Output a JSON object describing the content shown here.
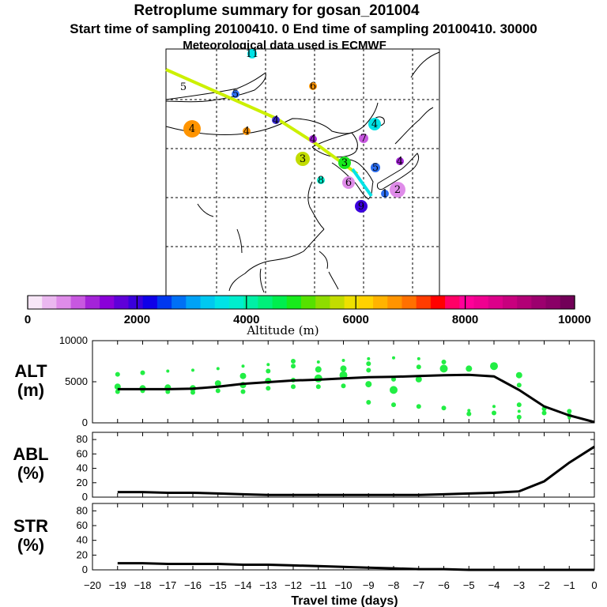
{
  "header": {
    "title": "Retroplume summary for gosan_201004",
    "line2": "Start time of sampling 20100410.    0     End time of sampling 20100410. 30000",
    "line3": "Meteorological data used is ECMWF"
  },
  "colorbar": {
    "label": "Altitude (m)",
    "ticks": [
      "0",
      "2000",
      "4000",
      "6000",
      "8000",
      "10000"
    ],
    "colors": [
      "#f7e6f7",
      "#ebb8f0",
      "#df8ce9",
      "#c858e0",
      "#a423d8",
      "#8a00d8",
      "#5f00d8",
      "#3a00dc",
      "#0f00e8",
      "#0038ef",
      "#0070f5",
      "#00a2f6",
      "#00c8f0",
      "#00e3e6",
      "#00eecd",
      "#00f0a5",
      "#00f07a",
      "#00ee4e",
      "#18ea1c",
      "#56e100",
      "#8fdc00",
      "#c2dc00",
      "#eee000",
      "#ffd200",
      "#ffb300",
      "#ff9400",
      "#ff7000",
      "#ff3c00",
      "#ff0000",
      "#ff0066",
      "#ff0099",
      "#f00090",
      "#dc008a",
      "#c8007e",
      "#b20076",
      "#9c006e",
      "#8a0066",
      "#720058"
    ]
  },
  "map": {
    "markers": [
      {
        "label": "11",
        "color": "#00e3e6"
      },
      {
        "label": "5",
        "color": "#ff9400"
      },
      {
        "label": "5",
        "color": "#2c6ef0"
      },
      {
        "label": "6",
        "color": "#ff9400"
      },
      {
        "label": "4",
        "color": "#ff9400"
      },
      {
        "label": "4",
        "color": "#ff9400"
      },
      {
        "label": "4",
        "color": "#3a2ad8"
      },
      {
        "label": "4",
        "color": "#a423d8"
      },
      {
        "label": "4",
        "color": "#00e3e6"
      },
      {
        "label": "7",
        "color": "#c858e0"
      },
      {
        "label": "3",
        "color": "#c2dc00"
      },
      {
        "label": "3",
        "color": "#18ea1c"
      },
      {
        "label": "4",
        "color": "#a423d8"
      },
      {
        "label": "5",
        "color": "#2c6ef0"
      },
      {
        "label": "8",
        "color": "#00eecd"
      },
      {
        "label": "6",
        "color": "#df8ce9"
      },
      {
        "label": "2",
        "color": "#df8ce9"
      },
      {
        "label": "1",
        "color": "#2c6ef0"
      },
      {
        "label": "9",
        "color": "#3a00dc"
      }
    ]
  },
  "chart_data": [
    {
      "type": "scatter",
      "name": "ALT",
      "ylabel_line1": "ALT",
      "ylabel_line2": "(m)",
      "xlim": [
        -20,
        0
      ],
      "ylim": [
        0,
        10000
      ],
      "yticks": [
        "10000",
        "5000",
        "0"
      ],
      "ytick_values": [
        10000,
        5000,
        0
      ],
      "mean_line": {
        "x": [
          -19,
          -18,
          -17,
          -16,
          -15,
          -14,
          -13,
          -12,
          -11,
          -10,
          -9,
          -8,
          -7,
          -6,
          -5,
          -4,
          -3,
          -2,
          -1,
          0
        ],
        "y": [
          4100,
          4100,
          4100,
          4150,
          4400,
          4750,
          4950,
          5150,
          5250,
          5400,
          5550,
          5600,
          5700,
          5800,
          5850,
          5650,
          4000,
          2000,
          900,
          100
        ]
      },
      "points": {
        "x": [
          -19,
          -19,
          -19,
          -18,
          -18,
          -18,
          -17,
          -17,
          -17,
          -16,
          -16,
          -16,
          -15,
          -15,
          -15,
          -14,
          -14,
          -14,
          -14,
          -13,
          -13,
          -13,
          -13,
          -12,
          -12,
          -12,
          -12,
          -11,
          -11,
          -11,
          -11,
          -10,
          -10,
          -10,
          -10,
          -9,
          -9,
          -9,
          -9,
          -9,
          -8,
          -8,
          -8,
          -8,
          -7,
          -7,
          -7,
          -7,
          -6,
          -6,
          -6,
          -5,
          -5,
          -5,
          -4,
          -4,
          -4,
          -3,
          -3,
          -3,
          -3,
          -3,
          -2,
          -2,
          -1,
          -1,
          -1
        ],
        "y": [
          5900,
          4400,
          3800,
          6100,
          4200,
          3900,
          6300,
          4300,
          3800,
          6400,
          4200,
          3700,
          6600,
          4800,
          3900,
          6900,
          5700,
          4600,
          3800,
          7100,
          6300,
          5100,
          4200,
          7500,
          6900,
          5200,
          4400,
          7400,
          6500,
          5400,
          4400,
          7600,
          6600,
          5800,
          4500,
          7800,
          6400,
          4700,
          2500,
          7200,
          7900,
          5300,
          4000,
          2200,
          7800,
          6800,
          5300,
          2000,
          7400,
          6600,
          1800,
          6600,
          1500,
          1100,
          6900,
          2000,
          1200,
          5800,
          4600,
          2200,
          1400,
          700,
          1700,
          1200,
          1400,
          900,
          600
        ],
        "size": [
          3,
          4,
          3,
          3,
          4,
          3,
          2,
          4,
          3,
          2,
          4,
          3,
          2,
          4,
          3,
          2,
          4,
          4,
          3,
          2,
          3,
          4,
          3,
          3,
          3,
          3,
          3,
          2,
          4,
          5,
          3,
          2,
          4,
          5,
          3,
          2,
          3,
          4,
          3,
          3,
          2,
          3,
          5,
          3,
          2,
          3,
          4,
          3,
          3,
          5,
          3,
          4,
          2,
          3,
          5,
          2,
          3,
          4,
          3,
          3,
          2,
          3,
          3,
          3,
          3,
          3,
          2
        ]
      }
    },
    {
      "type": "line",
      "name": "ABL",
      "ylabel_line1": "ABL",
      "ylabel_line2": "(%)",
      "xlim": [
        -20,
        0
      ],
      "ylim": [
        0,
        90
      ],
      "yticks": [
        "80",
        "60",
        "40",
        "20",
        "0"
      ],
      "ytick_values": [
        80,
        60,
        40,
        20,
        0
      ],
      "x": [
        -19,
        -18,
        -17,
        -16,
        -15,
        -14,
        -13,
        -12,
        -11,
        -10,
        -9,
        -8,
        -7,
        -6,
        -5,
        -4,
        -3,
        -2,
        -1,
        0
      ],
      "y": [
        7,
        7,
        6,
        6,
        5,
        4,
        3,
        3,
        3,
        3,
        3,
        3,
        3,
        4,
        5,
        6,
        8,
        22,
        48,
        70
      ]
    },
    {
      "type": "line",
      "name": "STR",
      "ylabel_line1": "STR",
      "ylabel_line2": "(%)",
      "xlim": [
        -20,
        0
      ],
      "ylim": [
        0,
        90
      ],
      "yticks": [
        "80",
        "60",
        "40",
        "20",
        "0"
      ],
      "ytick_values": [
        80,
        60,
        40,
        20,
        0
      ],
      "xticks": [
        "−20",
        "−19",
        "−18",
        "−17",
        "−16",
        "−15",
        "−14",
        "−13",
        "−12",
        "−11",
        "−10",
        "−9",
        "−8",
        "−7",
        "−6",
        "−5",
        "−4",
        "−3",
        "−2",
        "−1",
        "0"
      ],
      "xtick_values": [
        -20,
        -19,
        -18,
        -17,
        -16,
        -15,
        -14,
        -13,
        -12,
        -11,
        -10,
        -9,
        -8,
        -7,
        -6,
        -5,
        -4,
        -3,
        -2,
        -1,
        0
      ],
      "xlabel": "Travel time (days)",
      "x": [
        -19,
        -18,
        -17,
        -16,
        -15,
        -14,
        -13,
        -12,
        -11,
        -10,
        -9,
        -8,
        -7,
        -6,
        -5,
        -4,
        -3,
        -2,
        -1,
        0
      ],
      "y": [
        9,
        9,
        8,
        8,
        8,
        7,
        7,
        6,
        5,
        4,
        3,
        2,
        1,
        1,
        0,
        0,
        0,
        0,
        0,
        0
      ]
    }
  ]
}
